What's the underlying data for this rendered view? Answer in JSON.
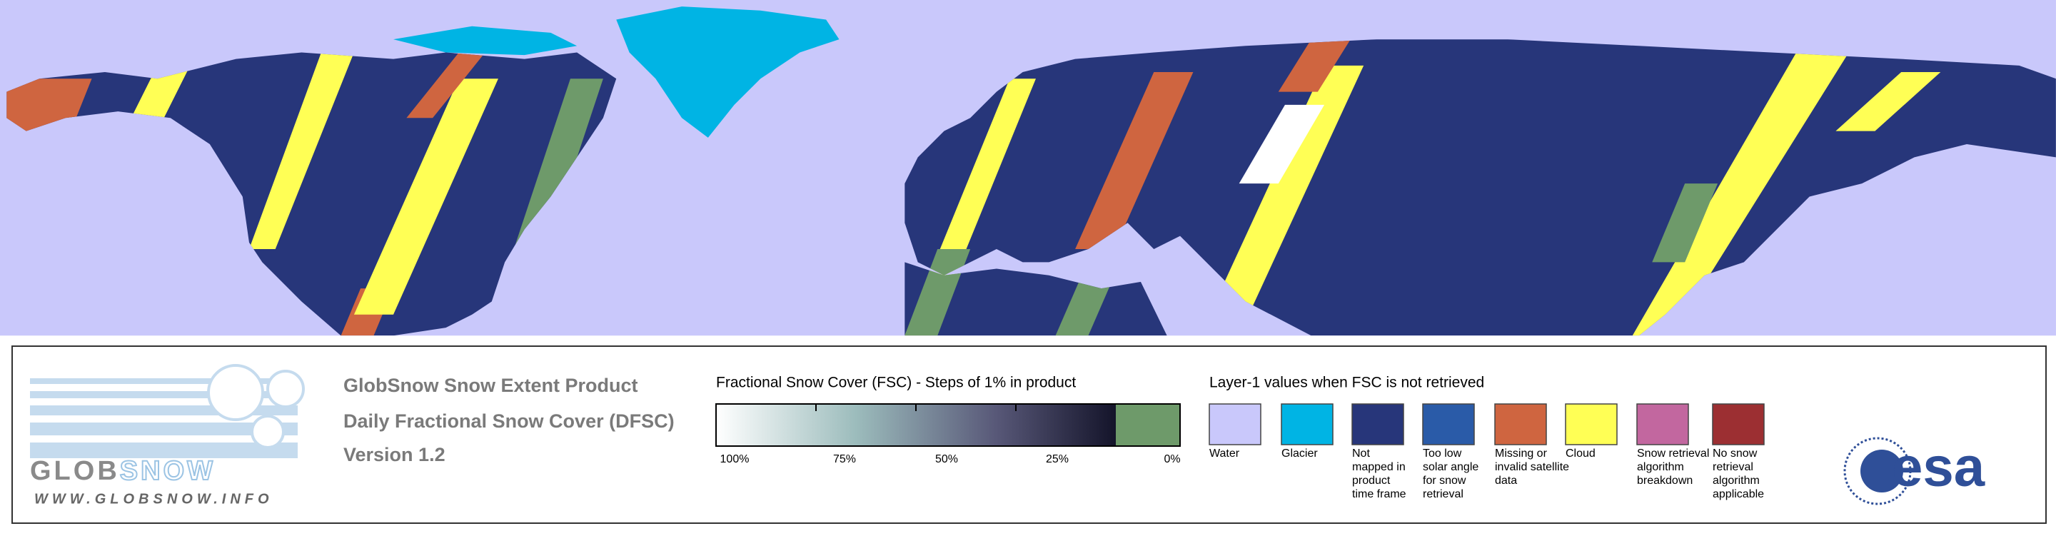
{
  "header": {
    "logo_left": "GLOB",
    "logo_right": "SNOW",
    "url": "WWW.GLOBSNOW.INFO",
    "product": "GlobSnow Snow Extent Product",
    "dataset": "Daily Fractional Snow Cover (DFSC)",
    "version": "Version 1.2"
  },
  "colorbar": {
    "title": "Fractional Snow Cover (FSC) - Steps of 1% in product",
    "ticks": [
      "100%",
      "75%",
      "50%",
      "25%",
      "0%"
    ]
  },
  "legend": {
    "title": "Layer-1 values when FSC is not retrieved",
    "items": [
      {
        "label": [
          "Water"
        ],
        "color": "#c9c8fb"
      },
      {
        "label": [
          "Glacier"
        ],
        "color": "#00b4e4"
      },
      {
        "label": [
          "Not",
          "mapped in",
          "product",
          "time frame"
        ],
        "color": "#27367a"
      },
      {
        "label": [
          "Too low",
          "solar angle",
          "for snow",
          "retrieval"
        ],
        "color": "#2a5ba8"
      },
      {
        "label": [
          "Missing or",
          "invalid satellite",
          "data"
        ],
        "color": "#cf6540"
      },
      {
        "label": [
          "Cloud"
        ],
        "color": "#ffff55"
      },
      {
        "label": [
          "Snow retrieval",
          "algorithm",
          "breakdown"
        ],
        "color": "#c2679f"
      },
      {
        "label": [
          "No snow",
          "retrieval",
          "algorithm",
          "applicable"
        ],
        "color": "#9c2f32"
      }
    ]
  },
  "brand": "esa"
}
